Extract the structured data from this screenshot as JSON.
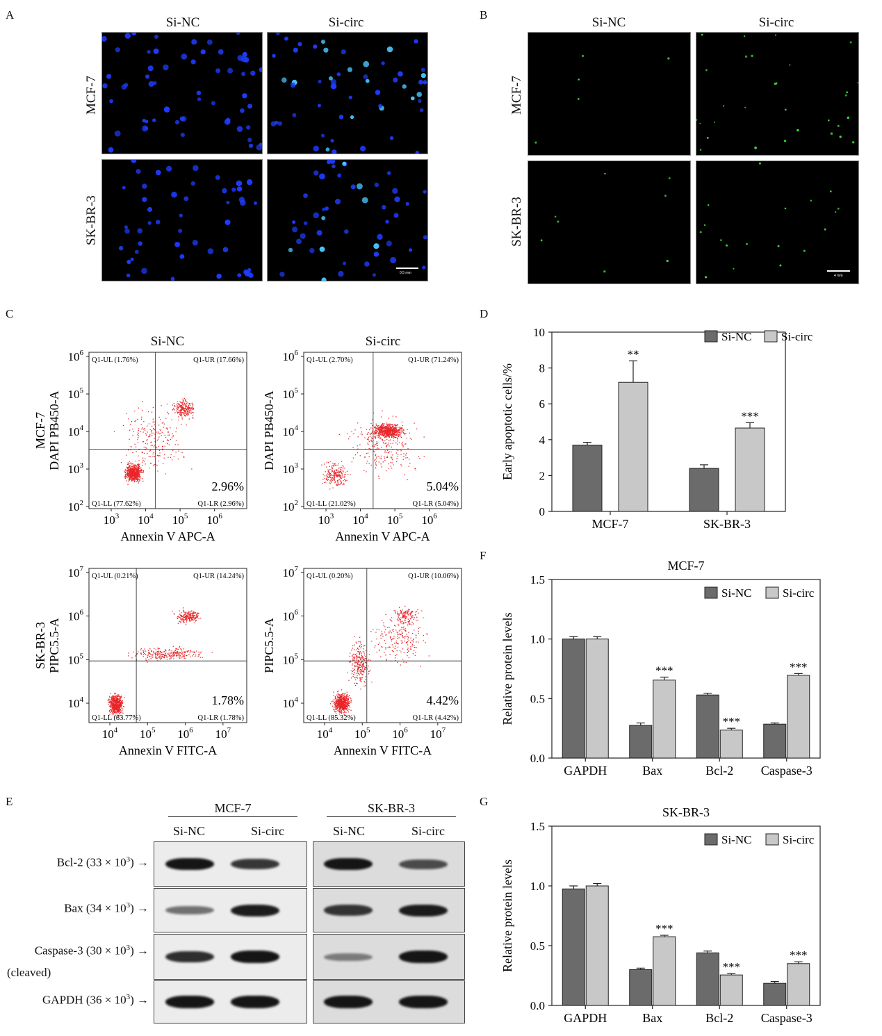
{
  "panels": {
    "a": {
      "letter": "A",
      "col_titles": [
        "Si-NC",
        "Si-circ"
      ],
      "row_labels": [
        "MCF-7",
        "SK-BR-3"
      ],
      "scale_text": "0.5 mm",
      "stain_color": "#1e3cff"
    },
    "b": {
      "letter": "B",
      "col_titles": [
        "Si-NC",
        "Si-circ"
      ],
      "row_labels": [
        "MCF-7",
        "SK-BR-3"
      ],
      "scale_text": "4 mm",
      "stain_color": "#3fdc3f"
    },
    "c": {
      "letter": "C",
      "col_titles": [
        "Si-NC",
        "Si-circ"
      ],
      "row_labels": [
        "MCF-7",
        "SK-BR-3"
      ],
      "plots": [
        {
          "ylabel": "DAPI PB450-A",
          "xlabel": "Annexin V APC-A",
          "row_label": "MCF-7",
          "yticks": [
            "2",
            "3",
            "4",
            "5",
            "6"
          ],
          "xticks": [
            "3",
            "4",
            "5",
            "6"
          ],
          "ul": "Q1-UL (1.76%)",
          "ur": "Q1-UR (17.66%)",
          "ll": "Q1-LL (77.62%)",
          "lr": "Q1-LR (2.96%)",
          "big": "2.96%"
        },
        {
          "ylabel": "DAPI PB450-A",
          "xlabel": "Annexin V APC-A",
          "row_label": "",
          "yticks": [
            "2",
            "3",
            "4",
            "5",
            "6"
          ],
          "xticks": [
            "3",
            "4",
            "5",
            "6"
          ],
          "ul": "Q1-UL (2.70%)",
          "ur": "Q1-UR (71.24%)",
          "ll": "Q1-LL (21.02%)",
          "lr": "Q1-LR (5.04%)",
          "big": "5.04%"
        },
        {
          "ylabel": "PIPC5.5-A",
          "xlabel": "Annexin V FITC-A",
          "row_label": "SK-BR-3",
          "yticks": [
            "4",
            "5",
            "6",
            "7"
          ],
          "xticks": [
            "4",
            "5",
            "6",
            "7"
          ],
          "ul": "Q1-UL (0.21%)",
          "ur": "Q1-UR (14.24%)",
          "ll": "Q1-LL (83.77%)",
          "lr": "Q1-LR (1.78%)",
          "big": "1.78%"
        },
        {
          "ylabel": "PIPC5.5-A",
          "xlabel": "Annexin V FITC-A",
          "row_label": "",
          "yticks": [
            "4",
            "5",
            "6",
            "7"
          ],
          "xticks": [
            "4",
            "5",
            "6",
            "7"
          ],
          "ul": "Q1-UL (0.20%)",
          "ur": "Q1-UR (10.06%)",
          "ll": "Q1-LL (85.32%)",
          "lr": "Q1-LR (4.42%)",
          "big": "4.42%"
        }
      ],
      "tick_base": "10",
      "dot_color": "#e8262a"
    },
    "d": {
      "letter": "D"
    },
    "e": {
      "letter": "E",
      "groups": [
        "MCF-7",
        "SK-BR-3"
      ],
      "lanes": [
        "Si-NC",
        "Si-circ",
        "Si-NC",
        "Si-circ"
      ],
      "rows": [
        {
          "label": "Bcl-2 (33 × 10",
          "sup": "3",
          "tail": ") →",
          "intensity": [
            0.95,
            0.75,
            0.95,
            0.6
          ]
        },
        {
          "label": "Bax (34 × 10",
          "sup": "3",
          "tail": ") →",
          "intensity": [
            0.4,
            0.9,
            0.75,
            0.9
          ]
        },
        {
          "label": "Caspase-3 (30 × 10",
          "sup": "3",
          "tail": ") →",
          "sub": "(cleaved)",
          "intensity": [
            0.8,
            0.95,
            0.3,
            0.95
          ]
        },
        {
          "label": "GAPDH (36 × 10",
          "sup": "3",
          "tail": ") →",
          "intensity": [
            0.95,
            0.95,
            0.95,
            0.95
          ]
        }
      ]
    },
    "f": {
      "letter": "F"
    },
    "g": {
      "letter": "G"
    }
  },
  "chart_data": [
    {
      "id": "D",
      "type": "bar",
      "title": "",
      "ylabel": "Early apoptotic cells/%",
      "xlabel": "",
      "categories": [
        "MCF-7",
        "SK-BR-3"
      ],
      "ylim": [
        0,
        10
      ],
      "yticks": [
        0,
        2,
        4,
        6,
        8,
        10
      ],
      "series": [
        {
          "name": "Si-NC",
          "color": "#6b6b6b",
          "values": [
            3.7,
            2.4
          ],
          "errors": [
            0.15,
            0.2
          ],
          "sig": [
            "",
            ""
          ]
        },
        {
          "name": "Si-circ",
          "color": "#c8c8c8",
          "values": [
            7.2,
            4.65
          ],
          "errors": [
            1.2,
            0.3
          ],
          "sig": [
            "**",
            "***"
          ]
        }
      ],
      "legend": "top-right"
    },
    {
      "id": "F",
      "type": "bar",
      "title": "MCF-7",
      "ylabel": "Relative protein levels",
      "xlabel": "",
      "categories": [
        "GAPDH",
        "Bax",
        "Bcl-2",
        "Caspase-3"
      ],
      "ylim": [
        0,
        1.5
      ],
      "yticks": [
        0.0,
        0.5,
        1.0,
        1.5
      ],
      "ytick_labels": [
        "0.0",
        "0.5",
        "1.0",
        "1.5"
      ],
      "series": [
        {
          "name": "Si-NC",
          "color": "#6b6b6b",
          "values": [
            1.0,
            0.275,
            0.53,
            0.285
          ],
          "errors": [
            0.02,
            0.02,
            0.015,
            0.01
          ],
          "sig": [
            "",
            "",
            "",
            ""
          ]
        },
        {
          "name": "Si-circ",
          "color": "#c8c8c8",
          "values": [
            1.0,
            0.655,
            0.235,
            0.695
          ],
          "errors": [
            0.02,
            0.025,
            0.015,
            0.015
          ],
          "sig": [
            "",
            "***",
            "***",
            "***"
          ]
        }
      ],
      "legend": "top-right"
    },
    {
      "id": "G",
      "type": "bar",
      "title": "SK-BR-3",
      "ylabel": "Relative protein levels",
      "xlabel": "",
      "categories": [
        "GAPDH",
        "Bax",
        "Bcl-2",
        "Caspase-3"
      ],
      "ylim": [
        0,
        1.5
      ],
      "yticks": [
        0.0,
        0.5,
        1.0,
        1.5
      ],
      "ytick_labels": [
        "0.0",
        "0.5",
        "1.0",
        "1.5"
      ],
      "series": [
        {
          "name": "Si-NC",
          "color": "#6b6b6b",
          "values": [
            0.975,
            0.3,
            0.44,
            0.185
          ],
          "errors": [
            0.025,
            0.012,
            0.015,
            0.015
          ],
          "sig": [
            "",
            "",
            "",
            ""
          ]
        },
        {
          "name": "Si-circ",
          "color": "#c8c8c8",
          "values": [
            1.0,
            0.575,
            0.255,
            0.35
          ],
          "errors": [
            0.02,
            0.012,
            0.012,
            0.015
          ],
          "sig": [
            "",
            "***",
            "***",
            "***"
          ]
        }
      ],
      "legend": "top-right"
    }
  ]
}
